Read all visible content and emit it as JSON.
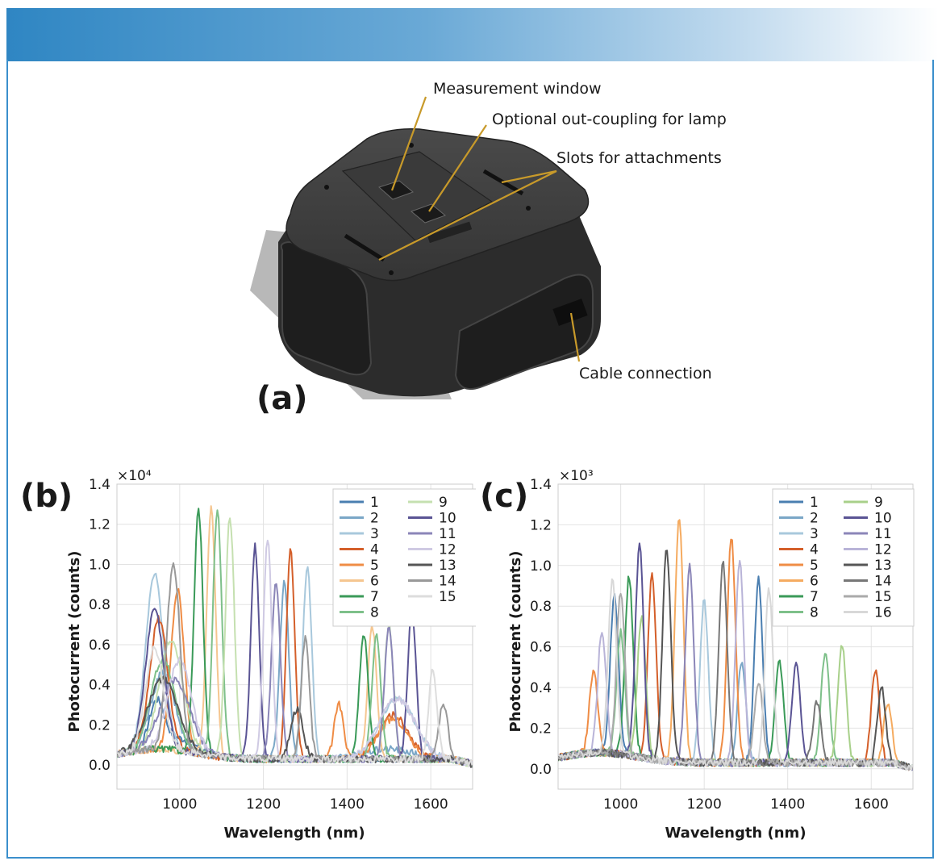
{
  "figure_a": {
    "label": "(a)",
    "callouts": {
      "measurement_window": "Measurement window",
      "out_coupling": "Optional out-coupling for lamp",
      "slots": "Slots for attachments",
      "cable": "Cable connection"
    },
    "colors": {
      "body": "#3a3a3a",
      "leader": "#c89a2a"
    }
  },
  "chart_data": [
    {
      "type": "line",
      "panel_label": "(b)",
      "multiplier": "×10⁴",
      "xlabel": "Wavelength (nm)",
      "ylabel": "Photocurrent (counts)",
      "xlim": [
        850,
        1700
      ],
      "ylim": [
        -0.12,
        1.4
      ],
      "xticks": [
        1000,
        1200,
        1400,
        1600
      ],
      "yticks": [
        0.0,
        0.2,
        0.4,
        0.6,
        0.8,
        1.0,
        1.2,
        1.4
      ],
      "grid": true,
      "legend_position": "top-right",
      "legend_columns": 2,
      "series": [
        {
          "name": "1",
          "color": "#4a7eb0",
          "peaks": [
            [
              945,
              0.22,
              25
            ],
            [
              1000,
              0.06,
              60
            ]
          ]
        },
        {
          "name": "2",
          "color": "#7aa7c7",
          "peaks": [
            [
              960,
              0.38,
              40
            ],
            [
              1250,
              0.88,
              15
            ],
            [
              1500,
              0.05,
              80
            ]
          ]
        },
        {
          "name": "3",
          "color": "#a8c8dc",
          "peaks": [
            [
              940,
              0.87,
              30
            ],
            [
              1305,
              0.95,
              15
            ],
            [
              1520,
              0.3,
              60
            ]
          ]
        },
        {
          "name": "4",
          "color": "#d45f2a",
          "peaks": [
            [
              950,
              0.65,
              30
            ],
            [
              1265,
              1.04,
              14
            ],
            [
              1510,
              0.22,
              50
            ]
          ]
        },
        {
          "name": "5",
          "color": "#ef8c45",
          "peaks": [
            [
              995,
              0.8,
              22
            ],
            [
              1380,
              0.28,
              15
            ],
            [
              1510,
              0.2,
              50
            ]
          ]
        },
        {
          "name": "6",
          "color": "#f5c690",
          "peaks": [
            [
              1075,
              1.23,
              15
            ],
            [
              1460,
              0.66,
              15
            ]
          ]
        },
        {
          "name": "7",
          "color": "#3a9a58",
          "peaks": [
            [
              1045,
              1.22,
              15
            ],
            [
              1440,
              0.62,
              15
            ]
          ]
        },
        {
          "name": "8",
          "color": "#7ec08a",
          "peaks": [
            [
              960,
              0.45,
              40
            ],
            [
              1090,
              1.22,
              15
            ],
            [
              1470,
              0.62,
              15
            ]
          ]
        },
        {
          "name": "9",
          "color": "#c5e0b0",
          "peaks": [
            [
              980,
              0.55,
              40
            ],
            [
              1120,
              1.2,
              15
            ],
            [
              1500,
              0.67,
              15
            ]
          ]
        },
        {
          "name": "10",
          "color": "#5a5494",
          "peaks": [
            [
              940,
              0.7,
              30
            ],
            [
              1180,
              1.06,
              14
            ],
            [
              1555,
              0.75,
              14
            ]
          ]
        },
        {
          "name": "11",
          "color": "#8b86b8",
          "peaks": [
            [
              990,
              0.35,
              50
            ],
            [
              1230,
              0.88,
              15
            ],
            [
              1500,
              0.66,
              15
            ]
          ]
        },
        {
          "name": "12",
          "color": "#cfcae3",
          "peaks": [
            [
              1000,
              0.45,
              40
            ],
            [
              1210,
              1.1,
              14
            ],
            [
              1520,
              0.3,
              60
            ]
          ]
        },
        {
          "name": "13",
          "color": "#555555",
          "peaks": [
            [
              960,
              0.35,
              50
            ],
            [
              1280,
              0.25,
              20
            ]
          ]
        },
        {
          "name": "14",
          "color": "#999999",
          "peaks": [
            [
              985,
              0.93,
              22
            ],
            [
              1300,
              0.6,
              14
            ],
            [
              1630,
              0.28,
              15
            ]
          ]
        },
        {
          "name": "15",
          "color": "#dddddd",
          "peaks": [
            [
              940,
              0.5,
              30
            ],
            [
              1605,
              0.45,
              14
            ]
          ]
        }
      ]
    },
    {
      "type": "line",
      "panel_label": "(c)",
      "multiplier": "×10³",
      "xlabel": "Wavelength (nm)",
      "ylabel": "Photocurrent (counts)",
      "xlim": [
        850,
        1700
      ],
      "ylim": [
        -0.1,
        1.4
      ],
      "xticks": [
        1000,
        1200,
        1400,
        1600
      ],
      "yticks": [
        0.0,
        0.2,
        0.4,
        0.6,
        0.8,
        1.0,
        1.2,
        1.4
      ],
      "grid": true,
      "legend_position": "top-right",
      "legend_columns": 2,
      "series": [
        {
          "name": "1",
          "color": "#4a7eb0",
          "peaks": [
            [
              1330,
              0.9,
              14
            ],
            [
              985,
              0.78,
              14
            ]
          ]
        },
        {
          "name": "2",
          "color": "#7aa7c7",
          "peaks": [
            [
              1290,
              0.5,
              14
            ]
          ]
        },
        {
          "name": "3",
          "color": "#a8c8dc",
          "peaks": [
            [
              1200,
              0.8,
              14
            ]
          ]
        },
        {
          "name": "4",
          "color": "#d45f2a",
          "peaks": [
            [
              1075,
              0.9,
              14
            ],
            [
              1610,
              0.45,
              14
            ]
          ]
        },
        {
          "name": "5",
          "color": "#ef8c45",
          "peaks": [
            [
              935,
              0.4,
              14
            ],
            [
              1265,
              1.11,
              14
            ]
          ]
        },
        {
          "name": "6",
          "color": "#f5ab60",
          "peaks": [
            [
              1140,
              1.21,
              14
            ],
            [
              1640,
              0.3,
              14
            ]
          ]
        },
        {
          "name": "7",
          "color": "#3a9a58",
          "peaks": [
            [
              1020,
              0.88,
              14
            ],
            [
              1380,
              0.5,
              14
            ]
          ]
        },
        {
          "name": "8",
          "color": "#7ec08a",
          "peaks": [
            [
              1000,
              0.6,
              14
            ],
            [
              1490,
              0.55,
              14
            ]
          ]
        },
        {
          "name": "9",
          "color": "#a8d08a",
          "peaks": [
            [
              1050,
              0.7,
              14
            ],
            [
              1530,
              0.58,
              14
            ]
          ]
        },
        {
          "name": "10",
          "color": "#5a5494",
          "peaks": [
            [
              1045,
              1.04,
              14
            ],
            [
              1420,
              0.5,
              14
            ]
          ]
        },
        {
          "name": "11",
          "color": "#8b86b8",
          "peaks": [
            [
              1165,
              0.97,
              14
            ]
          ]
        },
        {
          "name": "12",
          "color": "#b9b4d8",
          "peaks": [
            [
              1285,
              1.0,
              14
            ],
            [
              955,
              0.6,
              14
            ]
          ]
        },
        {
          "name": "13",
          "color": "#555555",
          "peaks": [
            [
              1110,
              1.05,
              14
            ],
            [
              1625,
              0.37,
              14
            ]
          ]
        },
        {
          "name": "14",
          "color": "#777777",
          "peaks": [
            [
              1245,
              0.98,
              14
            ],
            [
              1470,
              0.3,
              14
            ]
          ]
        },
        {
          "name": "15",
          "color": "#aaaaaa",
          "peaks": [
            [
              1000,
              0.8,
              14
            ],
            [
              1330,
              0.4,
              14
            ]
          ]
        },
        {
          "name": "16",
          "color": "#d8d8d8",
          "peaks": [
            [
              1355,
              0.85,
              14
            ],
            [
              980,
              0.85,
              14
            ]
          ]
        }
      ]
    }
  ]
}
